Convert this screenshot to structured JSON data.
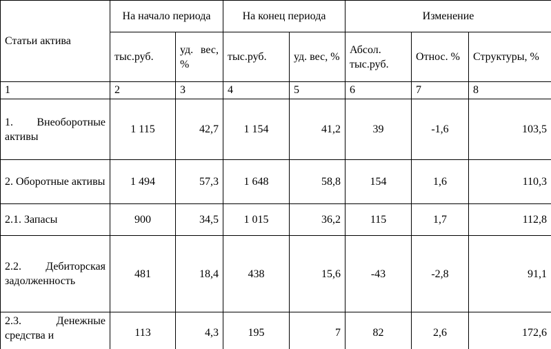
{
  "table": {
    "header": {
      "row_label": "Статьи актива",
      "groups": [
        "На начало периода",
        "На конец периода",
        "Изменение"
      ],
      "subheaders": [
        "тыс.руб.",
        "уд. вес, %",
        "тыс.руб.",
        "уд. вес, %",
        "Абсол. тыс.руб.",
        "Относ. %",
        "Структуры, %"
      ],
      "numbers": [
        "1",
        "2",
        "3",
        "4",
        "5",
        "6",
        "7",
        "8"
      ]
    },
    "rows": [
      [
        "1. Внеоборотные активы",
        "1 115",
        "42,7",
        "1 154",
        "41,2",
        "39",
        "-1,6",
        "103,5"
      ],
      [
        "2. Оборотные активы",
        "1 494",
        "57,3",
        "1 648",
        "58,8",
        "154",
        "1,6",
        "110,3"
      ],
      [
        "2.1. Запасы",
        "900",
        "34,5",
        "1 015",
        "36,2",
        "115",
        "1,7",
        "112,8"
      ],
      [
        "2.2. Дебиторская задолженность",
        "481",
        "18,4",
        "438",
        "15,6",
        "-43",
        "-2,8",
        "91,1"
      ],
      [
        "2.3. Денежные средства и",
        "113",
        "4,3",
        "195",
        "7",
        "82",
        "2,6",
        "172,6"
      ]
    ]
  }
}
